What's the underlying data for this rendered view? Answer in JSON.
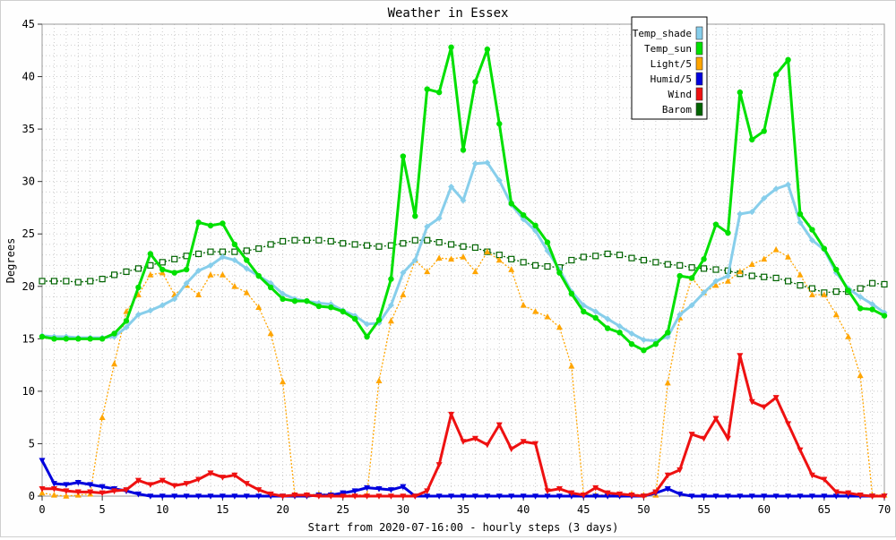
{
  "chart_data": {
    "type": "line",
    "title": "Weather in Essex",
    "xlabel": "Start from 2020-07-16:00 - hourly steps (3 days)",
    "ylabel": "Degrees",
    "xlim": [
      0,
      70
    ],
    "ylim": [
      0,
      45
    ],
    "x_ticks": [
      0,
      5,
      10,
      15,
      20,
      25,
      30,
      35,
      40,
      45,
      50,
      55,
      60,
      65,
      70
    ],
    "y_ticks": [
      0,
      5,
      10,
      15,
      20,
      25,
      30,
      35,
      40,
      45
    ],
    "grid": true,
    "legend_position": "top-right",
    "series": [
      {
        "name": "Temp_shade",
        "color": "#87ceeb",
        "marker": "diamond",
        "values": [
          15.3,
          15.2,
          15.2,
          15.1,
          15.1,
          15.1,
          15.2,
          16.1,
          17.3,
          17.7,
          18.2,
          18.8,
          20.3,
          21.5,
          22.0,
          22.8,
          22.5,
          21.7,
          21.0,
          20.3,
          19.3,
          18.8,
          18.6,
          18.4,
          18.3,
          17.7,
          17.2,
          16.4,
          16.5,
          18.2,
          21.3,
          22.5,
          25.7,
          26.5,
          29.5,
          28.2,
          31.7,
          31.8,
          30.1,
          27.8,
          26.4,
          25.3,
          23.4,
          21.6,
          19.5,
          18.2,
          17.6,
          16.9,
          16.2,
          15.5,
          14.9,
          14.8,
          15.2,
          17.3,
          18.2,
          19.4,
          20.5,
          21.0,
          26.9,
          27.1,
          28.4,
          29.3,
          29.7,
          26.1,
          24.4,
          23.5,
          21.3,
          19.8,
          19.0,
          18.3,
          17.5
        ]
      },
      {
        "name": "Temp_sun",
        "color": "#00e000",
        "marker": "circle",
        "values": [
          15.2,
          15.0,
          15.0,
          15.0,
          15.0,
          15.0,
          15.5,
          16.7,
          19.9,
          23.1,
          21.6,
          21.3,
          21.6,
          26.1,
          25.8,
          26.0,
          24.0,
          22.5,
          21.0,
          19.9,
          18.8,
          18.6,
          18.6,
          18.1,
          18.0,
          17.6,
          16.9,
          15.2,
          16.8,
          20.7,
          32.4,
          26.7,
          38.8,
          38.5,
          42.8,
          33.0,
          39.5,
          42.6,
          35.5,
          27.9,
          26.8,
          25.8,
          24.2,
          21.3,
          19.3,
          17.6,
          17.0,
          16.0,
          15.6,
          14.5,
          13.9,
          14.5,
          15.6,
          21.0,
          20.8,
          22.6,
          25.9,
          25.1,
          38.5,
          34.0,
          34.8,
          40.2,
          41.6,
          26.9,
          25.4,
          23.6,
          21.6,
          19.6,
          17.9,
          17.8,
          17.2
        ]
      },
      {
        "name": "Light/5",
        "color": "#ffa500",
        "marker": "triangle-up",
        "values": [
          0.3,
          0.1,
          0.0,
          0.1,
          0.2,
          7.5,
          12.6,
          17.6,
          19.2,
          21.1,
          21.3,
          19.2,
          20.1,
          19.2,
          21.1,
          21.1,
          20.0,
          19.4,
          18.0,
          15.5,
          10.9,
          0.1,
          0.1,
          0.2,
          0.2,
          0.1,
          0.1,
          0.1,
          11.0,
          16.7,
          19.2,
          22.5,
          21.4,
          22.7,
          22.6,
          22.8,
          21.4,
          23.3,
          22.5,
          21.6,
          18.2,
          17.6,
          17.1,
          16.1,
          12.4,
          0.1,
          0.1,
          0.1,
          0.1,
          0.2,
          0.1,
          0.1,
          10.8,
          17.0,
          20.8,
          19.4,
          20.1,
          20.5,
          21.4,
          22.1,
          22.6,
          23.5,
          22.8,
          21.1,
          19.2,
          19.2,
          17.3,
          15.2,
          11.5,
          0.1,
          0.1
        ]
      },
      {
        "name": "Humid/5",
        "color": "#0000dd",
        "marker": "triangle-down",
        "values": [
          3.4,
          1.2,
          1.1,
          1.3,
          1.1,
          0.9,
          0.7,
          0.5,
          0.2,
          0.0,
          0.0,
          0.0,
          0.0,
          0.0,
          0.0,
          0.0,
          0.0,
          0.0,
          0.0,
          0.0,
          0.0,
          0.0,
          0.0,
          0.1,
          0.1,
          0.3,
          0.5,
          0.8,
          0.7,
          0.6,
          0.9,
          0.0,
          0.0,
          0.0,
          0.0,
          0.0,
          0.0,
          0.0,
          0.0,
          0.0,
          0.0,
          0.0,
          0.0,
          0.0,
          0.0,
          0.0,
          0.0,
          0.0,
          0.0,
          0.0,
          0.0,
          0.3,
          0.7,
          0.2,
          0.0,
          0.0,
          0.0,
          0.0,
          0.0,
          0.0,
          0.0,
          0.0,
          0.0,
          0.0,
          0.0,
          0.0,
          0.0,
          0.0,
          0.0,
          0.0,
          0.0
        ]
      },
      {
        "name": "Wind",
        "color": "#ee1111",
        "marker": "triangle-down",
        "values": [
          0.7,
          0.7,
          0.5,
          0.4,
          0.4,
          0.3,
          0.5,
          0.6,
          1.5,
          1.1,
          1.5,
          1.0,
          1.2,
          1.6,
          2.2,
          1.8,
          2.0,
          1.2,
          0.6,
          0.2,
          0.0,
          0.1,
          0.1,
          0.0,
          0.0,
          0.0,
          0.0,
          0.0,
          0.0,
          0.0,
          0.0,
          0.0,
          0.5,
          3.0,
          7.8,
          5.2,
          5.5,
          4.9,
          6.8,
          4.5,
          5.2,
          5.0,
          0.5,
          0.7,
          0.3,
          0.1,
          0.8,
          0.3,
          0.2,
          0.1,
          0.0,
          0.4,
          2.0,
          2.5,
          5.9,
          5.5,
          7.4,
          5.5,
          13.4,
          9.0,
          8.5,
          9.4,
          6.9,
          4.4,
          2.0,
          1.6,
          0.4,
          0.3,
          0.1,
          0.0,
          0.0
        ]
      },
      {
        "name": "Barom",
        "color": "#006400",
        "marker": "square",
        "values": [
          20.5,
          20.5,
          20.5,
          20.4,
          20.5,
          20.7,
          21.1,
          21.4,
          21.7,
          22.0,
          22.3,
          22.6,
          22.9,
          23.1,
          23.3,
          23.3,
          23.3,
          23.4,
          23.6,
          24.0,
          24.3,
          24.4,
          24.4,
          24.4,
          24.3,
          24.1,
          24.0,
          23.9,
          23.8,
          23.9,
          24.1,
          24.4,
          24.4,
          24.2,
          24.0,
          23.8,
          23.7,
          23.3,
          23.0,
          22.6,
          22.3,
          22.0,
          21.9,
          21.8,
          22.5,
          22.8,
          22.9,
          23.1,
          23.0,
          22.7,
          22.5,
          22.3,
          22.1,
          22.0,
          21.8,
          21.7,
          21.6,
          21.5,
          21.2,
          21.0,
          20.9,
          20.8,
          20.5,
          20.1,
          19.8,
          19.4,
          19.5,
          19.5,
          19.8,
          20.3,
          20.2
        ]
      }
    ]
  }
}
